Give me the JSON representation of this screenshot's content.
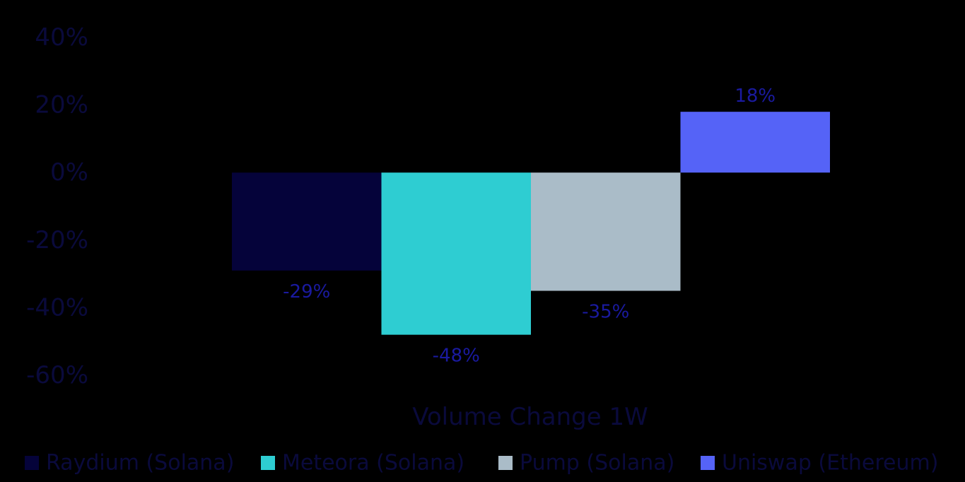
{
  "chart_data": {
    "type": "bar",
    "categories": [
      "Raydium (Solana)",
      "Meteora (Solana)",
      "Pump (Solana)",
      "Uniswap (Ethereum)"
    ],
    "series": [
      {
        "name": "Raydium (Solana)",
        "value": -29,
        "label": "-29%",
        "color": "#05033a"
      },
      {
        "name": "Meteora (Solana)",
        "value": -48,
        "label": "-48%",
        "color": "#2ecdd2"
      },
      {
        "name": "Pump (Solana)",
        "value": -35,
        "label": "-35%",
        "color": "#aabcc8"
      },
      {
        "name": "Uniswap (Ethereum)",
        "value": 18,
        "label": "18%",
        "color": "#5563f7"
      }
    ],
    "xlabel": "Volume Change 1W",
    "ylim": [
      -60,
      40
    ],
    "yticks": [
      40,
      20,
      0,
      -20,
      -40,
      -60
    ],
    "ytick_labels": [
      "40%",
      "20%",
      "0%",
      "-20%",
      "-40%",
      "-60%"
    ],
    "grid": false,
    "legend": "bottom"
  }
}
